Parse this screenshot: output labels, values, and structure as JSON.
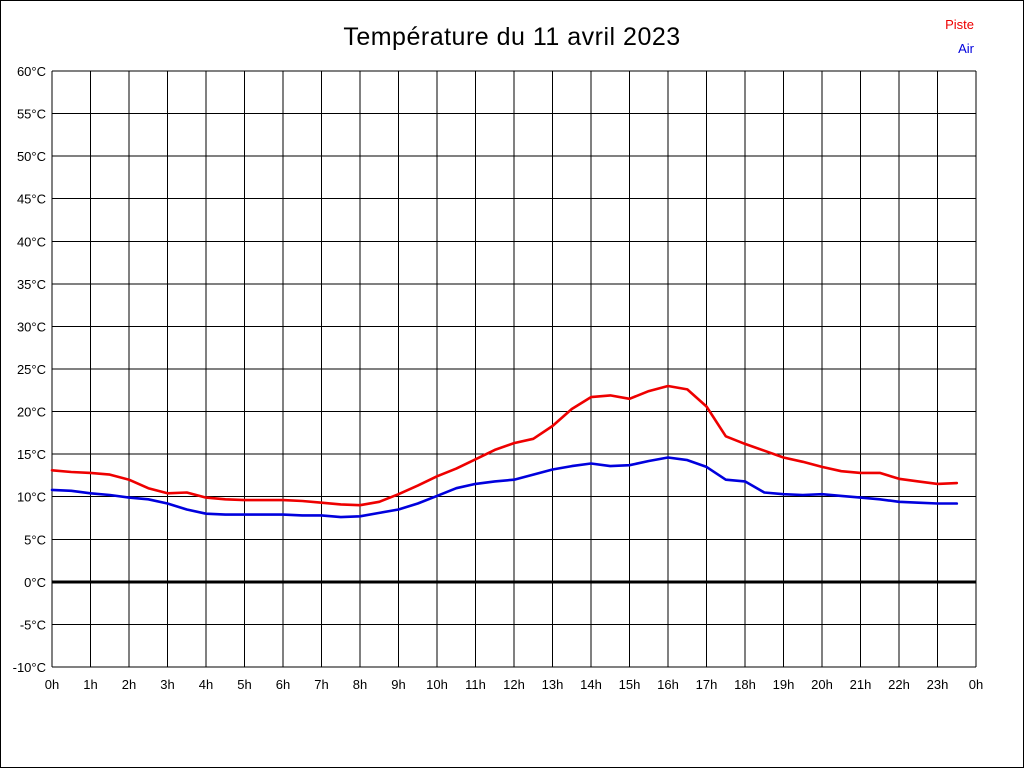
{
  "title": "Température du 11 avril 2023",
  "legend": [
    {
      "label": "Piste",
      "color": "#ee0000"
    },
    {
      "label": "Air",
      "color": "#0000dd"
    }
  ],
  "colors": {
    "grid": "#000000",
    "zero_line": "#000000",
    "background": "#ffffff",
    "title_text": "#000000",
    "tick_text": "#000000"
  },
  "chart_data": {
    "type": "line",
    "title": "Température du 11 avril 2023",
    "xlabel": "",
    "ylabel": "",
    "xlim": [
      0,
      24
    ],
    "ylim": [
      -10,
      60
    ],
    "x_tick_step": 1,
    "y_tick_step": 5,
    "grid": true,
    "legend_position": "top-right",
    "zero_line_value": 0,
    "x_tick_labels": [
      "0h",
      "1h",
      "2h",
      "3h",
      "4h",
      "5h",
      "6h",
      "7h",
      "8h",
      "9h",
      "10h",
      "11h",
      "12h",
      "13h",
      "14h",
      "15h",
      "16h",
      "17h",
      "18h",
      "19h",
      "20h",
      "21h",
      "22h",
      "23h",
      "0h"
    ],
    "y_tick_labels": [
      "60°C",
      "55°C",
      "50°C",
      "45°C",
      "40°C",
      "35°C",
      "30°C",
      "25°C",
      "20°C",
      "15°C",
      "10°C",
      "5°C",
      "0°C",
      "-5°C",
      "-10°C"
    ],
    "x": [
      0,
      0.5,
      1,
      1.5,
      2,
      2.5,
      3,
      3.5,
      4,
      4.5,
      5,
      5.5,
      6,
      6.5,
      7,
      7.5,
      8,
      8.5,
      9,
      9.5,
      10,
      10.5,
      11,
      11.5,
      12,
      12.5,
      13,
      13.5,
      14,
      14.5,
      15,
      15.5,
      16,
      16.5,
      17,
      17.5,
      18,
      18.5,
      19,
      19.5,
      20,
      20.5,
      21,
      21.5,
      22,
      22.5,
      23,
      23.5
    ],
    "series": [
      {
        "name": "Piste",
        "color": "#ee0000",
        "values": [
          13.1,
          12.9,
          12.8,
          12.6,
          12.0,
          11.0,
          10.4,
          10.5,
          9.9,
          9.7,
          9.6,
          9.6,
          9.6,
          9.5,
          9.3,
          9.1,
          9.0,
          9.4,
          10.3,
          11.3,
          12.4,
          13.3,
          14.4,
          15.5,
          16.3,
          16.8,
          18.3,
          20.3,
          21.7,
          21.9,
          21.5,
          22.4,
          23.0,
          22.6,
          20.6,
          17.1,
          16.2,
          15.4,
          14.6,
          14.1,
          13.5,
          13.0,
          12.8,
          12.8,
          12.1,
          11.8,
          11.5,
          11.6
        ]
      },
      {
        "name": "Air",
        "color": "#0000dd",
        "values": [
          10.8,
          10.7,
          10.4,
          10.2,
          9.9,
          9.7,
          9.2,
          8.5,
          8.0,
          7.9,
          7.9,
          7.9,
          7.9,
          7.8,
          7.8,
          7.6,
          7.7,
          8.1,
          8.5,
          9.2,
          10.1,
          11.0,
          11.5,
          11.8,
          12.0,
          12.6,
          13.2,
          13.6,
          13.9,
          13.6,
          13.7,
          14.2,
          14.6,
          14.3,
          13.5,
          12.0,
          11.8,
          10.5,
          10.3,
          10.2,
          10.3,
          10.1,
          9.9,
          9.7,
          9.4,
          9.3,
          9.2,
          9.2
        ]
      }
    ]
  }
}
